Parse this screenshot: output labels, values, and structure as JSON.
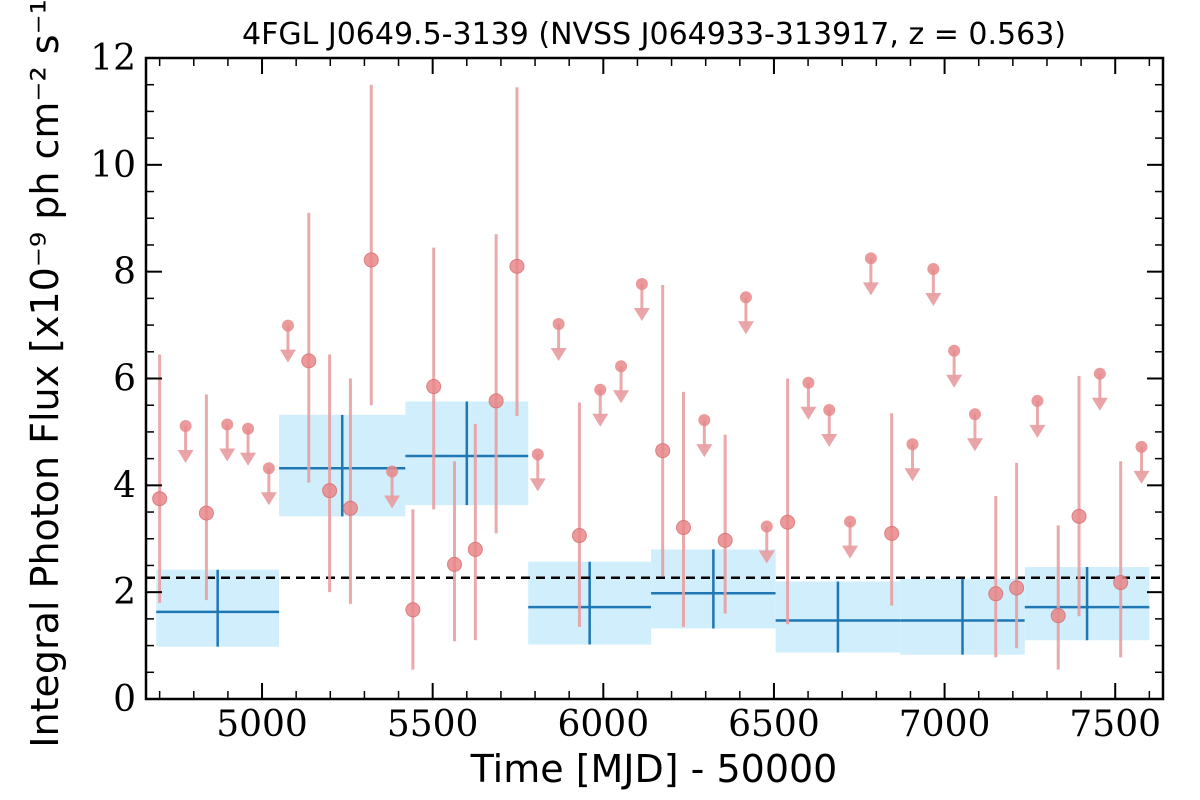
{
  "chart_data": {
    "type": "scatter",
    "title": "4FGL J0649.5-3139 (NVSS J064933-313917, z = 0.563)",
    "xlabel": "Time [MJD] - 50000",
    "ylabel": "Integral Photon Flux [x10⁻⁹ ph cm⁻² s⁻¹]",
    "xlim": [
      4660,
      7640
    ],
    "ylim": [
      0,
      12
    ],
    "x_ticks": [
      "5000",
      "5500",
      "6000",
      "6500",
      "7000",
      "7500"
    ],
    "x_tick_values": [
      5000,
      5500,
      6000,
      6500,
      7000,
      7500
    ],
    "y_ticks": [
      "0",
      "2",
      "4",
      "6",
      "8",
      "10",
      "12"
    ],
    "y_tick_values": [
      0,
      2,
      4,
      6,
      8,
      10,
      12
    ],
    "mean_flux": 2.27,
    "colors": {
      "points": "#e8888a",
      "errorbars": "#e8a0a2",
      "bins_fill": "#d0eefc",
      "bins_line": "#1f77b4",
      "mean_line": "#000000"
    },
    "detections": [
      {
        "x": 4700,
        "y": 3.75,
        "lo": 1.8,
        "hi": 6.45
      },
      {
        "x": 4837,
        "y": 3.48,
        "lo": 1.85,
        "hi": 5.7
      },
      {
        "x": 5137,
        "y": 6.33,
        "lo": 4.05,
        "hi": 9.1
      },
      {
        "x": 5198,
        "y": 3.9,
        "lo": 2.0,
        "hi": 6.45
      },
      {
        "x": 5259,
        "y": 3.57,
        "lo": 1.78,
        "hi": 6.0
      },
      {
        "x": 5320,
        "y": 8.22,
        "lo": 5.5,
        "hi": 11.5
      },
      {
        "x": 5442,
        "y": 1.67,
        "lo": 0.55,
        "hi": 3.55
      },
      {
        "x": 5503,
        "y": 5.85,
        "lo": 3.55,
        "hi": 8.45
      },
      {
        "x": 5564,
        "y": 2.52,
        "lo": 1.08,
        "hi": 4.45
      },
      {
        "x": 5625,
        "y": 2.8,
        "lo": 1.1,
        "hi": 5.15
      },
      {
        "x": 5686,
        "y": 5.58,
        "lo": 3.1,
        "hi": 8.7
      },
      {
        "x": 5747,
        "y": 8.1,
        "lo": 5.3,
        "hi": 11.45
      },
      {
        "x": 5930,
        "y": 3.06,
        "lo": 1.35,
        "hi": 5.55
      },
      {
        "x": 6174,
        "y": 4.65,
        "lo": 2.3,
        "hi": 7.75
      },
      {
        "x": 6235,
        "y": 3.21,
        "lo": 1.35,
        "hi": 5.75
      },
      {
        "x": 6357,
        "y": 2.97,
        "lo": 1.6,
        "hi": 4.95
      },
      {
        "x": 6540,
        "y": 3.31,
        "lo": 1.4,
        "hi": 6.0
      },
      {
        "x": 6845,
        "y": 3.1,
        "lo": 1.75,
        "hi": 5.35
      },
      {
        "x": 7150,
        "y": 1.97,
        "lo": 0.78,
        "hi": 3.8
      },
      {
        "x": 7211,
        "y": 2.08,
        "lo": 0.95,
        "hi": 4.42
      },
      {
        "x": 7333,
        "y": 1.56,
        "lo": 0.55,
        "hi": 3.25
      },
      {
        "x": 7394,
        "y": 3.42,
        "lo": 1.55,
        "hi": 6.05
      },
      {
        "x": 7516,
        "y": 2.18,
        "lo": 0.78,
        "hi": 4.45
      }
    ],
    "upper_limits": [
      {
        "x": 4776,
        "y": 5.11
      },
      {
        "x": 4898,
        "y": 5.14
      },
      {
        "x": 4959,
        "y": 5.06
      },
      {
        "x": 5020,
        "y": 4.32
      },
      {
        "x": 5076,
        "y": 6.99
      },
      {
        "x": 5381,
        "y": 4.26
      },
      {
        "x": 5808,
        "y": 4.58
      },
      {
        "x": 5869,
        "y": 7.02
      },
      {
        "x": 5991,
        "y": 5.79
      },
      {
        "x": 6052,
        "y": 6.23
      },
      {
        "x": 6113,
        "y": 7.77
      },
      {
        "x": 6296,
        "y": 5.22
      },
      {
        "x": 6418,
        "y": 7.52
      },
      {
        "x": 6479,
        "y": 3.23
      },
      {
        "x": 6601,
        "y": 5.92
      },
      {
        "x": 6662,
        "y": 5.41
      },
      {
        "x": 6723,
        "y": 3.32
      },
      {
        "x": 6784,
        "y": 8.25
      },
      {
        "x": 6906,
        "y": 4.77
      },
      {
        "x": 6967,
        "y": 8.05
      },
      {
        "x": 7028,
        "y": 6.52
      },
      {
        "x": 7089,
        "y": 5.33
      },
      {
        "x": 7272,
        "y": 5.58
      },
      {
        "x": 7455,
        "y": 6.09
      },
      {
        "x": 7577,
        "y": 4.72
      }
    ],
    "bins": [
      {
        "x0": 4690,
        "x1": 5050,
        "y": 1.63,
        "lo": 0.98,
        "hi": 2.42
      },
      {
        "x0": 5050,
        "x1": 5420,
        "y": 4.32,
        "lo": 3.42,
        "hi": 5.32
      },
      {
        "x0": 5420,
        "x1": 5780,
        "y": 4.55,
        "lo": 3.63,
        "hi": 5.57
      },
      {
        "x0": 5780,
        "x1": 6140,
        "y": 1.72,
        "lo": 1.02,
        "hi": 2.57
      },
      {
        "x0": 6140,
        "x1": 6505,
        "y": 1.98,
        "lo": 1.32,
        "hi": 2.8
      },
      {
        "x0": 6505,
        "x1": 6870,
        "y": 1.47,
        "lo": 0.87,
        "hi": 2.2
      },
      {
        "x0": 6870,
        "x1": 7235,
        "y": 1.47,
        "lo": 0.83,
        "hi": 2.25
      },
      {
        "x0": 7235,
        "x1": 7600,
        "y": 1.72,
        "lo": 1.1,
        "hi": 2.47
      }
    ]
  }
}
